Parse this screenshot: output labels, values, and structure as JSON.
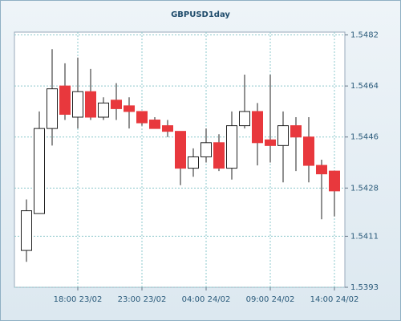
{
  "chart_data": {
    "type": "candlestick",
    "title": "GBPUSD1day",
    "categories": [
      null,
      null,
      null,
      null,
      "18:00 23/02",
      null,
      null,
      null,
      null,
      "23:00 23/02",
      null,
      null,
      null,
      null,
      "04:00 24/02",
      null,
      null,
      null,
      null,
      "09:00 24/02",
      null,
      null,
      null,
      null,
      "14:00 24/02"
    ],
    "series": [
      {
        "open": [
          1.5406,
          1.5419,
          1.5449,
          1.5464,
          1.5453,
          1.5462,
          1.5453,
          1.5459,
          1.5457,
          1.5455,
          1.5452,
          1.545,
          1.5448,
          1.5435,
          1.5439,
          1.5444,
          1.5435,
          1.545,
          1.5455,
          1.5445,
          1.5443,
          1.545,
          1.5446,
          1.5436,
          1.5434
        ],
        "high": [
          1.5424,
          1.5455,
          1.5477,
          1.5472,
          1.5474,
          1.547,
          1.546,
          1.5465,
          1.546,
          1.5455,
          1.5453,
          1.5452,
          1.5448,
          1.5442,
          1.5449,
          1.5447,
          1.5455,
          1.5468,
          1.5458,
          1.5468,
          1.5455,
          1.5453,
          1.5453,
          1.5438,
          1.5434
        ],
        "low": [
          1.5402,
          1.5419,
          1.5443,
          1.5452,
          1.5449,
          1.5452,
          1.5452,
          1.5452,
          1.5449,
          1.545,
          1.5449,
          1.5446,
          1.5429,
          1.5432,
          1.5437,
          1.5434,
          1.5431,
          1.5449,
          1.5436,
          1.5437,
          1.543,
          1.5434,
          1.543,
          1.5417,
          1.5418
        ],
        "close": [
          1.542,
          1.5449,
          1.5463,
          1.5454,
          1.5462,
          1.5453,
          1.5458,
          1.5456,
          1.5455,
          1.5451,
          1.5449,
          1.5448,
          1.5435,
          1.5439,
          1.5444,
          1.5435,
          1.545,
          1.5455,
          1.5444,
          1.5443,
          1.545,
          1.5446,
          1.5436,
          1.5433,
          1.5427
        ],
        "up_color": "#ffffff",
        "down_color": "#e8383d"
      }
    ],
    "ylim": [
      1.5393,
      1.5483
    ],
    "yticks": [
      1.5393,
      1.5411,
      1.5428,
      1.5446,
      1.5464,
      1.5482
    ],
    "grid": true
  }
}
